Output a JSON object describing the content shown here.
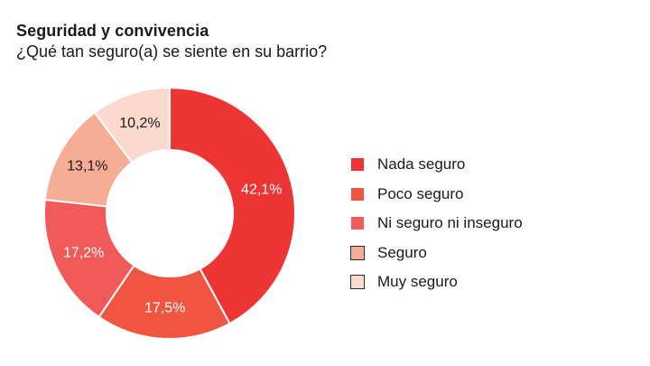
{
  "title": "Seguridad y convivencia",
  "subtitle": "¿Qué tan seguro(a) se siente en su barrio?",
  "chart_data": {
    "type": "pie",
    "donut": true,
    "categories": [
      "Nada seguro",
      "Poco seguro",
      "Ni seguro ni inseguro",
      "Seguro",
      "Muy seguro"
    ],
    "values": [
      42.1,
      17.5,
      17.2,
      13.1,
      10.2
    ],
    "labels": [
      "42,1%",
      "17,5%",
      "17,2%",
      "13,1%",
      "10,2%"
    ],
    "colors": [
      "#ee3535",
      "#ef5540",
      "#f05a5a",
      "#f6ad96",
      "#fcd9cf"
    ],
    "legend_placement": "right"
  },
  "legend": [
    {
      "label": "Nada seguro",
      "color": "#ee3535"
    },
    {
      "label": "Poco seguro",
      "color": "#ef5540"
    },
    {
      "label": "Ni seguro ni inseguro",
      "color": "#f05a5a"
    },
    {
      "label": "Seguro",
      "color": "#f6ad96"
    },
    {
      "label": "Muy seguro",
      "color": "#fcd9cf"
    }
  ]
}
